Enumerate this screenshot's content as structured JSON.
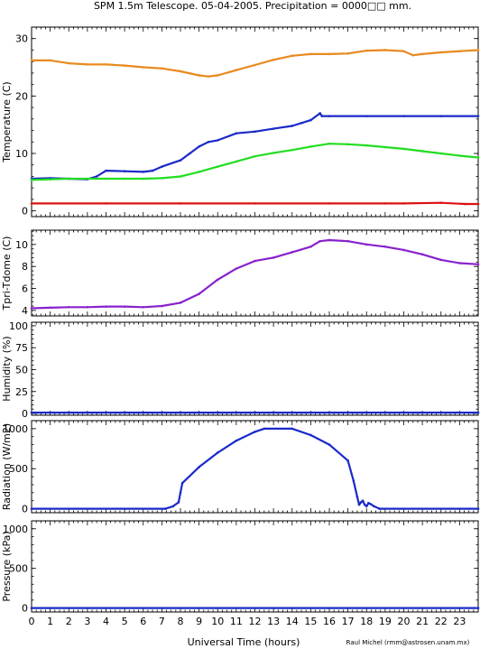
{
  "title": "SPM 1.5m Telescope. 05-04-2005. Precipitation = 0000□□ mm.",
  "xlabel": "Universal Time (hours)",
  "credit": "Raul Michel (rmm@astrosen.unam.mx)",
  "colors": {
    "orange": "#e88a1e",
    "blue": "#1a2ac8",
    "green": "#22dd22",
    "red": "#dd1111",
    "purple": "#8822cc",
    "axis": "#000000"
  },
  "chart_data": [
    {
      "type": "scatter",
      "ylabel": "Temperature (C)",
      "ylim": [
        -1,
        32
      ],
      "yticks": [
        0,
        10,
        20,
        30
      ],
      "xlim": [
        0,
        24
      ],
      "series": [
        {
          "color": "orange",
          "x": [
            0,
            1,
            2,
            3,
            4,
            5,
            6,
            7,
            8,
            9,
            9.5,
            10,
            11,
            12,
            13,
            14,
            15,
            16,
            17,
            18,
            19,
            20,
            20.5,
            21,
            22,
            23,
            24
          ],
          "y": [
            26.2,
            26.2,
            25.7,
            25.5,
            25.5,
            25.3,
            25.0,
            24.8,
            24.3,
            23.6,
            23.4,
            23.6,
            24.5,
            25.4,
            26.3,
            27.0,
            27.3,
            27.3,
            27.4,
            27.9,
            28.0,
            27.8,
            27.1,
            27.3,
            27.6,
            27.8,
            28.0
          ]
        },
        {
          "color": "blue",
          "x": [
            0,
            1,
            2,
            3,
            3.5,
            4,
            5,
            6,
            6.5,
            7,
            8,
            8.5,
            9,
            9.5,
            10,
            11,
            12,
            13,
            14,
            14.5,
            15,
            15.5,
            15.6,
            16,
            18,
            20,
            22,
            24
          ],
          "y": [
            5.6,
            5.7,
            5.6,
            5.5,
            6.0,
            7.0,
            6.9,
            6.8,
            7.0,
            7.7,
            8.8,
            10.0,
            11.2,
            12.0,
            12.3,
            13.5,
            13.8,
            14.3,
            14.8,
            15.3,
            15.8,
            17.0,
            16.5,
            16.5,
            16.5,
            16.5,
            16.5,
            16.5
          ]
        },
        {
          "color": "green",
          "x": [
            0,
            1,
            2,
            3,
            4,
            5,
            6,
            7,
            8,
            9,
            10,
            11,
            12,
            13,
            14,
            15,
            16,
            17,
            18,
            19,
            20,
            21,
            22,
            23,
            24
          ],
          "y": [
            5.4,
            5.5,
            5.6,
            5.6,
            5.6,
            5.6,
            5.6,
            5.7,
            6.0,
            6.8,
            7.7,
            8.6,
            9.5,
            10.1,
            10.6,
            11.2,
            11.7,
            11.6,
            11.4,
            11.1,
            10.8,
            10.4,
            10.0,
            9.6,
            9.3
          ]
        },
        {
          "color": "red",
          "x": [
            0,
            4,
            8,
            12,
            16,
            19,
            20,
            22,
            23.3,
            24
          ],
          "y": [
            1.3,
            1.3,
            1.3,
            1.3,
            1.3,
            1.3,
            1.3,
            1.4,
            1.2,
            1.2
          ]
        }
      ]
    },
    {
      "type": "scatter",
      "ylabel": "Tpri-Tdome (C)",
      "ylim": [
        3.5,
        11.3
      ],
      "yticks": [
        4,
        6,
        8,
        10
      ],
      "xlim": [
        0,
        24
      ],
      "series": [
        {
          "color": "purple",
          "x": [
            0,
            1,
            2,
            3,
            4,
            5,
            6,
            7,
            8,
            9,
            10,
            11,
            12,
            13,
            14,
            15,
            15.5,
            16,
            17,
            18,
            19,
            20,
            21,
            22,
            23,
            24
          ],
          "y": [
            4.2,
            4.25,
            4.3,
            4.3,
            4.35,
            4.35,
            4.3,
            4.4,
            4.7,
            5.5,
            6.8,
            7.8,
            8.5,
            8.8,
            9.3,
            9.8,
            10.3,
            10.4,
            10.3,
            10.0,
            9.8,
            9.5,
            9.1,
            8.6,
            8.3,
            8.2
          ]
        }
      ]
    },
    {
      "type": "line",
      "ylabel": "Humidity (%)",
      "ylim": [
        -2,
        104
      ],
      "yticks": [
        0,
        25,
        50,
        75,
        100
      ],
      "extra_tick_labels": [
        "0",
        "25",
        "50",
        "75",
        "100"
      ],
      "xlim": [
        0,
        24
      ],
      "series": [
        {
          "color": "blue",
          "x": [
            0,
            24
          ],
          "y": [
            1,
            1
          ]
        }
      ]
    },
    {
      "type": "line",
      "ylabel": "Radiation (W/m2)",
      "ylim": [
        -50,
        1100
      ],
      "yticks": [
        0,
        500,
        1000
      ],
      "xlim": [
        0,
        24
      ],
      "series": [
        {
          "color": "blue",
          "x": [
            0,
            7.2,
            7.6,
            7.9,
            8.0,
            8.1,
            9,
            10,
            11,
            12,
            12.5,
            14,
            15,
            16,
            17,
            17.3,
            17.5,
            17.6,
            17.7,
            17.8,
            17.9,
            18.0,
            18.1,
            18.2,
            18.4,
            18.7,
            24
          ],
          "y": [
            0,
            0,
            30,
            80,
            200,
            320,
            520,
            700,
            850,
            960,
            1000,
            1000,
            920,
            800,
            600,
            350,
            150,
            50,
            80,
            100,
            50,
            30,
            70,
            60,
            30,
            0,
            0
          ]
        }
      ]
    },
    {
      "type": "line",
      "ylabel": "Pressure (kPa)",
      "ylim": [
        -50,
        1100
      ],
      "yticks": [
        0,
        500,
        1000
      ],
      "xlim": [
        0,
        24
      ],
      "series": [
        {
          "color": "blue",
          "x": [
            0,
            24
          ],
          "y": [
            0,
            0
          ]
        }
      ]
    }
  ],
  "xticks": [
    "0",
    "1",
    "2",
    "3",
    "4",
    "5",
    "6",
    "7",
    "8",
    "9",
    "10",
    "11",
    "12",
    "13",
    "14",
    "15",
    "16",
    "17",
    "18",
    "19",
    "20",
    "21",
    "22",
    "23"
  ]
}
